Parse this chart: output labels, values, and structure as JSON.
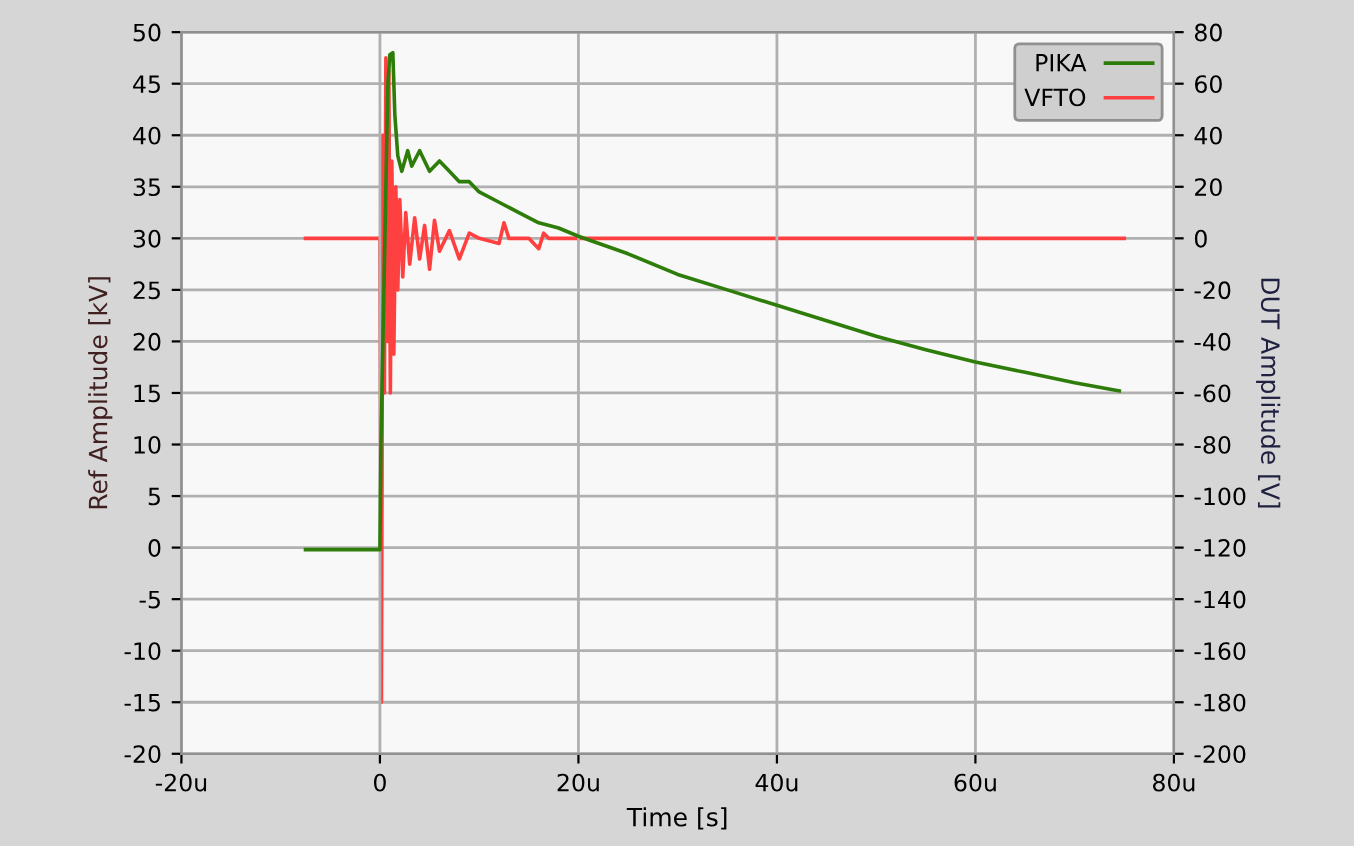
{
  "chart_data": {
    "type": "line",
    "xlabel": "Time [s]",
    "ylabel": "Ref Amplitude [kV]",
    "y2label": "DUT Amplitude [V]",
    "xlim": [
      -20,
      80
    ],
    "xticks": [
      {
        "value": -20,
        "label": "-20u"
      },
      {
        "value": 0,
        "label": "0"
      },
      {
        "value": 20,
        "label": "20u"
      },
      {
        "value": 40,
        "label": "40u"
      },
      {
        "value": 60,
        "label": "60u"
      },
      {
        "value": 80,
        "label": "80u"
      }
    ],
    "ylim": [
      -20,
      50
    ],
    "yticks": [
      -20,
      -15,
      -10,
      -5,
      0,
      5,
      10,
      15,
      20,
      25,
      30,
      35,
      40,
      45,
      50
    ],
    "y2lim": [
      -200,
      80
    ],
    "y2ticks": [
      -200,
      -180,
      -160,
      -140,
      -120,
      -100,
      -80,
      -60,
      -40,
      -20,
      0,
      20,
      40,
      60,
      80
    ],
    "grid": true,
    "legend": "top right",
    "series": [
      {
        "name": "PIKA",
        "color": "#2e7d0a",
        "x": [
          -7.5,
          0,
          0.05,
          0.1,
          0.3,
          0.5,
          0.8,
          1.0,
          1.3,
          1.5,
          1.8,
          2.2,
          2.8,
          3.2,
          4,
          5,
          6,
          7,
          8,
          9,
          10,
          12,
          14,
          16,
          18,
          20,
          25,
          30,
          35,
          40,
          45,
          50,
          55,
          60,
          65,
          70,
          74.5
        ],
        "values": [
          -0.2,
          -0.2,
          5,
          10,
          20,
          30,
          45,
          47.8,
          48,
          42,
          38,
          36.5,
          38.5,
          37,
          38.5,
          36.5,
          37.5,
          36.5,
          35.5,
          35.5,
          34.5,
          33.5,
          32.5,
          31.5,
          31,
          30.2,
          28.5,
          26.5,
          25,
          23.5,
          22,
          20.5,
          19.2,
          18,
          17,
          16,
          15.2
        ]
      },
      {
        "name": "VFTO",
        "color": "#ff4040",
        "axis": "y2",
        "x": [
          -7.5,
          0,
          0.15,
          0.3,
          0.45,
          0.6,
          0.75,
          0.9,
          1.05,
          1.2,
          1.4,
          1.6,
          1.8,
          2,
          2.3,
          2.6,
          3,
          3.5,
          4,
          4.5,
          5,
          5.5,
          6,
          7,
          8,
          9,
          10,
          12,
          12.5,
          13,
          15,
          16,
          16.5,
          17,
          20,
          40,
          75
        ],
        "values": [
          0,
          0,
          -180,
          40,
          -60,
          70,
          -40,
          65,
          -60,
          30,
          -45,
          20,
          -20,
          15,
          -15,
          10,
          -10,
          8,
          -8,
          5,
          -12,
          7,
          -5,
          3,
          -8,
          2,
          0,
          -2,
          6,
          0,
          0,
          -4,
          2,
          0,
          0,
          0,
          0
        ]
      }
    ]
  }
}
